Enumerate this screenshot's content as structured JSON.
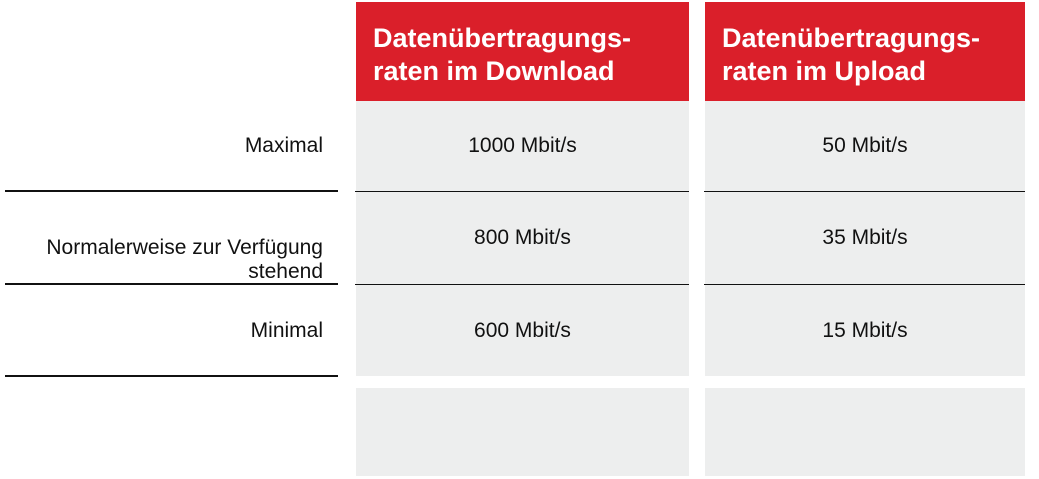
{
  "columns": [
    {
      "header_line1": "Datenübertragungs-",
      "header_line2": "raten im Download",
      "values": [
        "1000 Mbit/s",
        "800 Mbit/s",
        "600 Mbit/s"
      ]
    },
    {
      "header_line1": "Datenübertragungs-",
      "header_line2": "raten im Upload",
      "values": [
        "50 Mbit/s",
        "35 Mbit/s",
        "15 Mbit/s"
      ]
    }
  ],
  "rows": [
    {
      "label": "Maximal"
    },
    {
      "label_line1": "Normalerweise zur Verfügung",
      "label_line2": "stehend"
    },
    {
      "label": "Minimal"
    }
  ],
  "colors": {
    "header_bg": "#da1f2a",
    "cell_bg": "#edeeee"
  }
}
